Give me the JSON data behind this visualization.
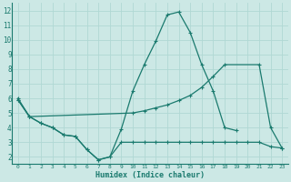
{
  "line_jagged_x": [
    0,
    1,
    2,
    3,
    4,
    5,
    6,
    7,
    8,
    9,
    10,
    11,
    12,
    13,
    14,
    15,
    16,
    17,
    18,
    19
  ],
  "line_jagged_y": [
    6.0,
    4.75,
    4.3,
    4.0,
    3.5,
    3.4,
    2.5,
    1.8,
    2.0,
    3.9,
    6.5,
    8.3,
    9.9,
    11.7,
    11.9,
    10.5,
    8.3,
    6.5,
    4.0,
    3.8
  ],
  "line_upper_x": [
    0,
    1,
    10,
    11,
    12,
    13,
    14,
    15,
    16,
    17,
    18,
    21,
    22,
    23
  ],
  "line_upper_y": [
    5.9,
    4.75,
    5.0,
    5.15,
    5.35,
    5.55,
    5.85,
    6.2,
    6.75,
    7.5,
    8.3,
    8.3,
    4.0,
    2.6
  ],
  "line_lower_x": [
    0,
    1,
    2,
    3,
    4,
    5,
    6,
    7,
    8,
    9,
    10,
    11,
    12,
    13,
    14,
    15,
    16,
    17,
    18,
    19,
    20,
    21,
    22,
    23
  ],
  "line_lower_y": [
    5.9,
    4.75,
    4.3,
    4.0,
    3.5,
    3.4,
    2.5,
    1.8,
    2.0,
    3.0,
    3.0,
    3.0,
    3.0,
    3.0,
    3.0,
    3.0,
    3.0,
    3.0,
    3.0,
    3.0,
    3.0,
    3.0,
    2.7,
    2.6
  ],
  "color": "#1a7a6e",
  "bg_color": "#cce8e5",
  "grid_color": "#b0d8d4",
  "xlabel": "Humidex (Indice chaleur)",
  "xlim": [
    -0.5,
    23.5
  ],
  "ylim": [
    1.5,
    12.5
  ],
  "yticks": [
    2,
    3,
    4,
    5,
    6,
    7,
    8,
    9,
    10,
    11,
    12
  ],
  "xticks": [
    0,
    1,
    2,
    3,
    4,
    5,
    6,
    7,
    8,
    9,
    10,
    11,
    12,
    13,
    14,
    15,
    16,
    17,
    18,
    19,
    20,
    21,
    22,
    23
  ]
}
